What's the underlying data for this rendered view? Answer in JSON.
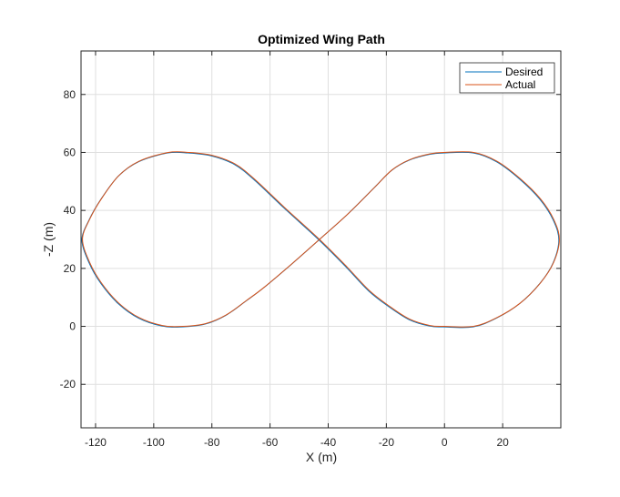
{
  "chart_data": {
    "type": "line",
    "title": "Optimized Wing Path",
    "xlabel": "X  (m)",
    "ylabel": "-Z (m)",
    "xlim": [
      -125,
      40
    ],
    "ylim": [
      -35,
      95
    ],
    "xticks": [
      -120,
      -100,
      -80,
      -60,
      -40,
      -20,
      0,
      20
    ],
    "yticks": [
      -20,
      0,
      20,
      40,
      60,
      80
    ],
    "grid": true,
    "legend_position": "top-right",
    "path_description": "figure-eight (lemniscate-like) path centered near x=-43, z=30",
    "path_points": [
      [
        -43,
        30
      ],
      [
        -55,
        41
      ],
      [
        -65,
        50.5
      ],
      [
        -72,
        56
      ],
      [
        -80,
        59
      ],
      [
        -88,
        60
      ],
      [
        -95,
        60
      ],
      [
        -105,
        57
      ],
      [
        -112,
        52
      ],
      [
        -118,
        44
      ],
      [
        -122,
        37
      ],
      [
        -124.5,
        30
      ],
      [
        -122,
        22
      ],
      [
        -118,
        15
      ],
      [
        -112,
        8
      ],
      [
        -105,
        3
      ],
      [
        -97,
        0.3
      ],
      [
        -90,
        0
      ],
      [
        -82,
        1
      ],
      [
        -75,
        4
      ],
      [
        -68,
        9
      ],
      [
        -62,
        13.5
      ],
      [
        -52,
        22
      ],
      [
        -43,
        30
      ],
      [
        -33,
        39
      ],
      [
        -24,
        48
      ],
      [
        -18,
        54
      ],
      [
        -12,
        57.5
      ],
      [
        -5,
        59.5
      ],
      [
        0,
        60
      ],
      [
        10,
        60
      ],
      [
        18,
        57
      ],
      [
        26,
        51
      ],
      [
        33,
        44
      ],
      [
        37.5,
        37
      ],
      [
        39.5,
        30
      ],
      [
        37.5,
        22
      ],
      [
        33,
        15
      ],
      [
        26,
        8
      ],
      [
        18,
        3
      ],
      [
        10,
        0
      ],
      [
        0,
        0
      ],
      [
        -5,
        0.3
      ],
      [
        -12,
        2.5
      ],
      [
        -19,
        7
      ],
      [
        -26,
        12.5
      ],
      [
        -34,
        21
      ],
      [
        -43,
        30
      ]
    ],
    "series": [
      {
        "name": "Desired",
        "color": "#0072BD",
        "linewidth": 1
      },
      {
        "name": "Actual",
        "color": "#D95319",
        "linewidth": 1
      }
    ]
  }
}
